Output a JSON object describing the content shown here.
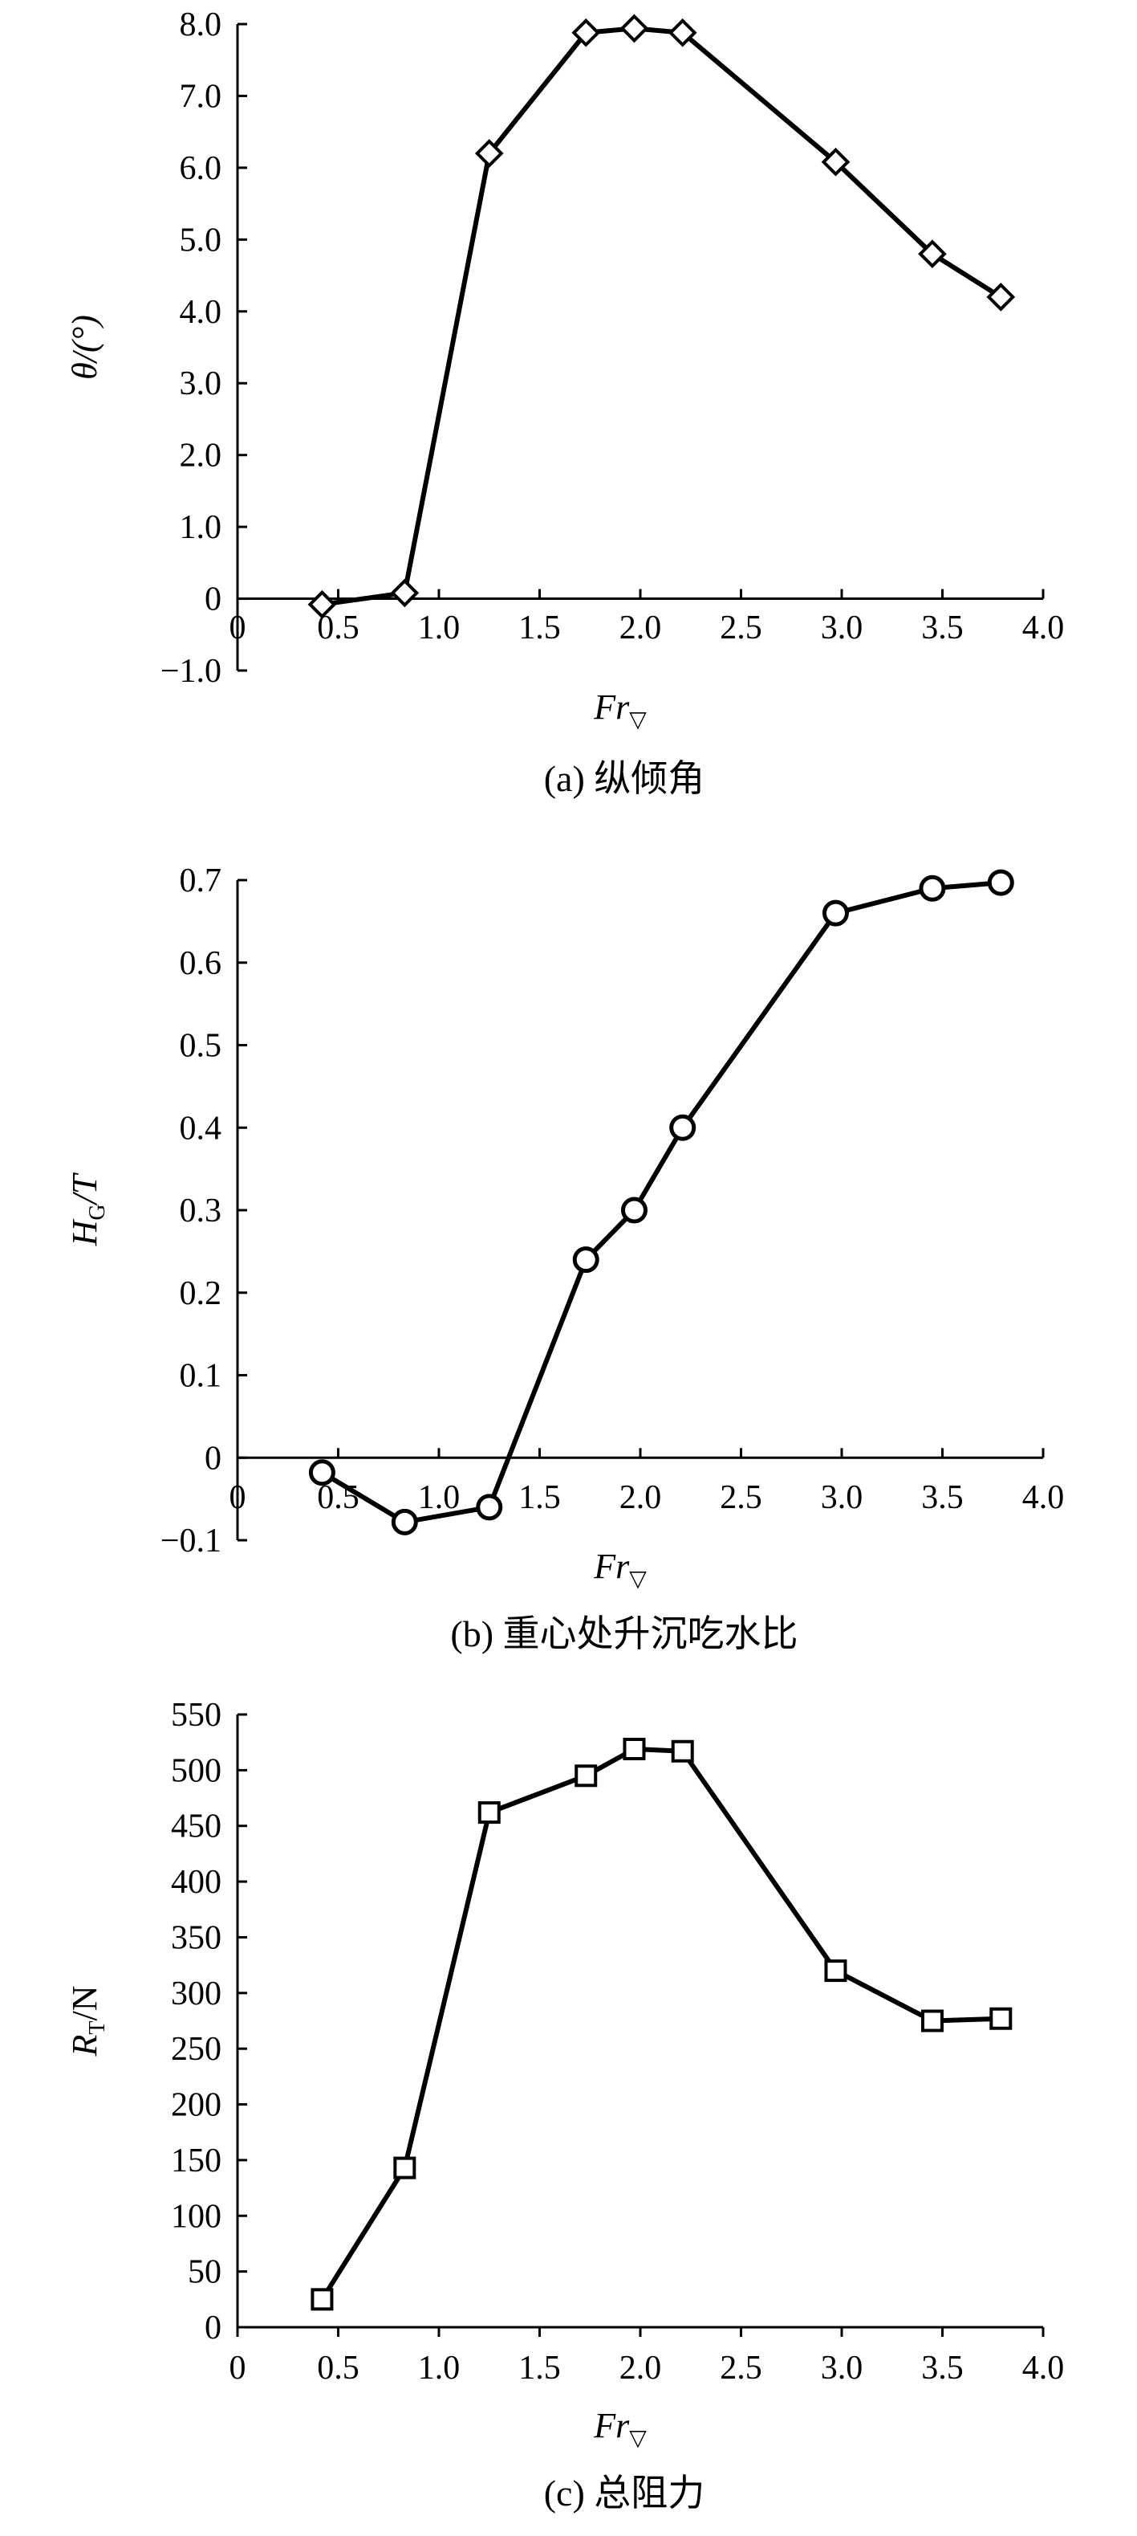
{
  "chart_data": [
    {
      "type": "line",
      "panel": "a",
      "caption": "(a) 纵倾角",
      "xlabel": "Fr",
      "xlabel_sub": "▽",
      "ylabel": "θ/(°)",
      "xlim": [
        0,
        4.0
      ],
      "ylim": [
        -1.0,
        8.0
      ],
      "x_ticks": [
        0,
        0.5,
        1.0,
        1.5,
        2.0,
        2.5,
        3.0,
        3.5,
        4.0
      ],
      "x_tick_labels": [
        "0",
        "0.5",
        "1.0",
        "1.5",
        "2.0",
        "2.5",
        "3.0",
        "3.5",
        "4.0"
      ],
      "y_ticks": [
        -1.0,
        0,
        1.0,
        2.0,
        3.0,
        4.0,
        5.0,
        6.0,
        7.0,
        8.0
      ],
      "y_tick_labels": [
        "−1.0",
        "0",
        "1.0",
        "2.0",
        "3.0",
        "4.0",
        "5.0",
        "6.0",
        "7.0",
        "8.0"
      ],
      "marker": "diamond",
      "series": [
        {
          "name": "θ",
          "x": [
            0.42,
            0.83,
            1.25,
            1.73,
            1.97,
            2.21,
            2.97,
            3.45,
            3.79
          ],
          "values": [
            -0.08,
            0.08,
            6.2,
            7.88,
            7.94,
            7.88,
            6.08,
            4.8,
            4.2
          ]
        }
      ]
    },
    {
      "type": "line",
      "panel": "b",
      "caption": "(b) 重心处升沉吃水比",
      "xlabel": "Fr",
      "xlabel_sub": "▽",
      "ylabel": "H",
      "ylabel_sub": "G",
      "ylabel_suffix": "/T",
      "xlim": [
        0,
        4.0
      ],
      "ylim": [
        -0.1,
        0.7
      ],
      "x_ticks": [
        0,
        0.5,
        1.0,
        1.5,
        2.0,
        2.5,
        3.0,
        3.5,
        4.0
      ],
      "x_tick_labels": [
        "0",
        "0.5",
        "1.0",
        "1.5",
        "2.0",
        "2.5",
        "3.0",
        "3.5",
        "4.0"
      ],
      "y_ticks": [
        -0.1,
        0,
        0.1,
        0.2,
        0.3,
        0.4,
        0.5,
        0.6,
        0.7
      ],
      "y_tick_labels": [
        "−0.1",
        "0",
        "0.1",
        "0.2",
        "0.3",
        "0.4",
        "0.5",
        "0.6",
        "0.7"
      ],
      "marker": "circle",
      "series": [
        {
          "name": "HG/T",
          "x": [
            0.42,
            0.83,
            1.25,
            1.73,
            1.97,
            2.21,
            2.97,
            3.45,
            3.79
          ],
          "values": [
            -0.018,
            -0.078,
            -0.06,
            0.24,
            0.3,
            0.4,
            0.66,
            0.69,
            0.697
          ]
        }
      ]
    },
    {
      "type": "line",
      "panel": "c",
      "caption": "(c) 总阻力",
      "xlabel": "Fr",
      "xlabel_sub": "▽",
      "ylabel": "R",
      "ylabel_sub": "T",
      "ylabel_suffix": "/N",
      "xlim": [
        0,
        4.0
      ],
      "ylim": [
        0,
        550
      ],
      "x_ticks": [
        0,
        0.5,
        1.0,
        1.5,
        2.0,
        2.5,
        3.0,
        3.5,
        4.0
      ],
      "x_tick_labels": [
        "0",
        "0.5",
        "1.0",
        "1.5",
        "2.0",
        "2.5",
        "3.0",
        "3.5",
        "4.0"
      ],
      "y_ticks": [
        0,
        50,
        100,
        150,
        200,
        250,
        300,
        350,
        400,
        450,
        500,
        550
      ],
      "y_tick_labels": [
        "0",
        "50",
        "100",
        "150",
        "200",
        "250",
        "300",
        "350",
        "400",
        "450",
        "500",
        "550"
      ],
      "marker": "square",
      "series": [
        {
          "name": "RT",
          "x": [
            0.42,
            0.83,
            1.25,
            1.73,
            1.97,
            2.21,
            2.97,
            3.45,
            3.79
          ],
          "values": [
            25,
            143,
            462,
            495,
            519,
            517,
            320,
            275,
            277
          ]
        }
      ]
    }
  ]
}
